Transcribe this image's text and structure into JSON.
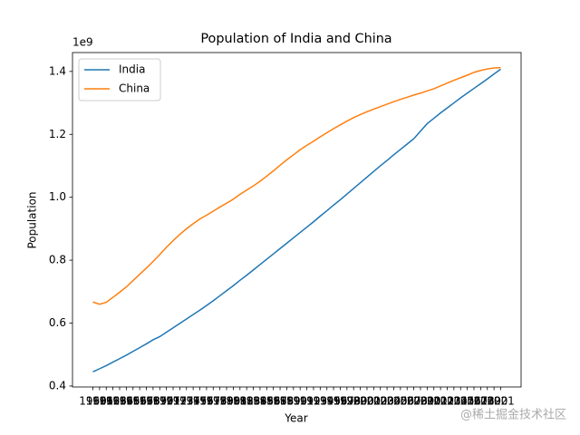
{
  "chart_data": {
    "type": "line",
    "title": "Population of India and China",
    "x_label": "Year",
    "y_label": "Population",
    "y_offset_label": "1e9",
    "watermark": "@稀土掘金技术社区",
    "categories": [
      "1960",
      "1961",
      "1962",
      "1963",
      "1964",
      "1965",
      "1966",
      "1967",
      "1968",
      "1969",
      "1970",
      "1971",
      "1972",
      "1973",
      "1974",
      "1975",
      "1976",
      "1977",
      "1978",
      "1979",
      "1980",
      "1981",
      "1982",
      "1983",
      "1984",
      "1985",
      "1986",
      "1987",
      "1988",
      "1989",
      "1990",
      "1991",
      "1992",
      "1993",
      "1994",
      "1995",
      "1996",
      "1997",
      "1998",
      "1999",
      "2000",
      "2001",
      "2002",
      "2003",
      "2004",
      "2005",
      "2006",
      "2007",
      "2008",
      "2009",
      "2010",
      "2011",
      "2012",
      "2013",
      "2014",
      "2015",
      "2016",
      "2017",
      "2018",
      "2019",
      "2020",
      "2021"
    ],
    "series": [
      {
        "name": "India",
        "color": "#1f77b4",
        "values": [
          0.445,
          0.455,
          0.465,
          0.476,
          0.487,
          0.498,
          0.51,
          0.522,
          0.534,
          0.547,
          0.557,
          0.571,
          0.585,
          0.599,
          0.613,
          0.627,
          0.641,
          0.656,
          0.671,
          0.687,
          0.703,
          0.719,
          0.736,
          0.752,
          0.769,
          0.786,
          0.803,
          0.82,
          0.837,
          0.854,
          0.871,
          0.888,
          0.905,
          0.922,
          0.94,
          0.957,
          0.975,
          0.992,
          1.01,
          1.028,
          1.046,
          1.064,
          1.082,
          1.1,
          1.117,
          1.135,
          1.152,
          1.169,
          1.186,
          1.21,
          1.234,
          1.251,
          1.268,
          1.284,
          1.3,
          1.316,
          1.331,
          1.346,
          1.361,
          1.376,
          1.392,
          1.407
        ]
      },
      {
        "name": "China",
        "color": "#ff7f0e",
        "values": [
          0.667,
          0.66,
          0.666,
          0.682,
          0.698,
          0.715,
          0.735,
          0.755,
          0.775,
          0.796,
          0.818,
          0.841,
          0.862,
          0.882,
          0.9,
          0.916,
          0.931,
          0.943,
          0.956,
          0.969,
          0.981,
          0.994,
          1.009,
          1.023,
          1.036,
          1.051,
          1.067,
          1.084,
          1.102,
          1.119,
          1.135,
          1.151,
          1.165,
          1.178,
          1.192,
          1.205,
          1.218,
          1.23,
          1.242,
          1.253,
          1.263,
          1.272,
          1.28,
          1.288,
          1.296,
          1.304,
          1.311,
          1.318,
          1.325,
          1.331,
          1.338,
          1.345,
          1.354,
          1.363,
          1.372,
          1.38,
          1.388,
          1.397,
          1.403,
          1.408,
          1.411,
          1.412
        ]
      }
    ],
    "ylim": [
      0.397,
      1.46
    ],
    "yticks": [
      0.4,
      0.6,
      0.8,
      {
        "value": 1,
        "label": "1.0"
      },
      1.2,
      1.4
    ],
    "legend": "upper left",
    "grid": false
  }
}
